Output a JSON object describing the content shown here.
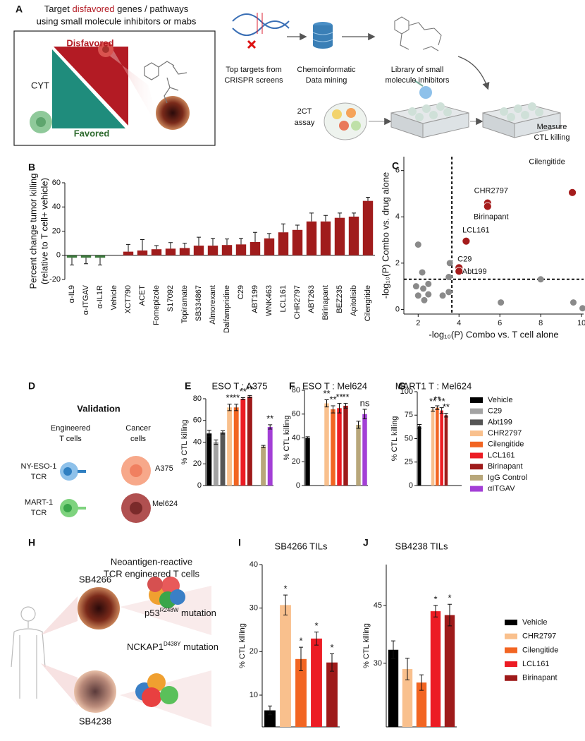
{
  "panel_a": {
    "label": "A",
    "title": [
      "Target ",
      "disfavored",
      " genes / pathways"
    ],
    "subtitle": "using small molecule inhibitors or mabs",
    "disfavored": "Disfavored",
    "cyt": "CYT",
    "favored": "Favored",
    "step1": [
      "Top targets from",
      "CRISPR screens"
    ],
    "step2": [
      "Chemoinformatic",
      "Data mining"
    ],
    "step3": [
      "Library of small",
      "molecule inhibitors"
    ],
    "assay": [
      "2CT",
      "assay"
    ],
    "readout": [
      "Measure",
      "CTL killing"
    ]
  },
  "panel_d": {
    "label": "D",
    "title": "Validation",
    "col1": [
      "Engineered",
      "T cells"
    ],
    "col2": [
      "Cancer",
      "cells"
    ],
    "row1": [
      "NY-ESO-1",
      "TCR"
    ],
    "row2": [
      "MART-1",
      "TCR"
    ],
    "cell1": "A375",
    "cell2": "Mel624"
  },
  "panel_h": {
    "label": "H",
    "title": [
      "Neoantigen-reactive",
      "TCR engineered T cells"
    ],
    "tumor1": "SB4266",
    "mutation1": [
      "p53",
      "R248W",
      " mutation"
    ],
    "mutation2": [
      "NCKAP1",
      "D438Y",
      " mutation"
    ],
    "tumor2": "SB4238"
  },
  "legend_efg": {
    "items": [
      {
        "name": "Vehicle",
        "color": "#000000"
      },
      {
        "name": "C29",
        "color": "#a3a3a3"
      },
      {
        "name": "Abt199",
        "color": "#555555"
      },
      {
        "name": "CHR2797",
        "color": "#f9c08d"
      },
      {
        "name": "Cilengitide",
        "color": "#f26522"
      },
      {
        "name": "LCL161",
        "color": "#ec1c24"
      },
      {
        "name": "Birinapant",
        "color": "#9e1a1a"
      },
      {
        "name": "IgG Control",
        "color": "#b8a77a"
      },
      {
        "name": "αITGAV",
        "color": "#a33fd6"
      }
    ]
  },
  "legend_ij": {
    "items": [
      {
        "name": "Vehicle",
        "color": "#000000"
      },
      {
        "name": "CHR2797",
        "color": "#f9c08d"
      },
      {
        "name": "Cilengitide",
        "color": "#f26522"
      },
      {
        "name": "LCL161",
        "color": "#ec1c24"
      },
      {
        "name": "Birinapant",
        "color": "#9e1a1a"
      }
    ]
  },
  "chart_data": [
    {
      "type": "bar",
      "label": "B",
      "ylabel": [
        "Percent change tumor killing",
        "(relative to T cell+ vehicle)"
      ],
      "categories": [
        "α-IL9",
        "α-ITGAV",
        "α-IL1R",
        "Vehicle",
        "XCT790",
        "ACET",
        "Fomepizole",
        "S17092",
        "Topiramate",
        "SB334867",
        "Almorexant",
        "Dalfampridine",
        "C29",
        "ABT199",
        "WNK463",
        "LCL161",
        "CHR2797",
        "ABT263",
        "Birinapant",
        "BEZ235",
        "Apitolisib",
        "Cilengitide"
      ],
      "values": [
        -2,
        -2,
        -2,
        0,
        3,
        4,
        5,
        5.5,
        6,
        8,
        8,
        8.5,
        9,
        11,
        14,
        19,
        21,
        28,
        28,
        31,
        32,
        45
      ],
      "errors": [
        6,
        5,
        6,
        0,
        6,
        9,
        3,
        5,
        4,
        7,
        6,
        5,
        5,
        8,
        4,
        7,
        4,
        7,
        5,
        4,
        3,
        3
      ],
      "colors": [
        "#3d7a3d",
        "#3d7a3d",
        "#3d7a3d",
        "#a01c1c",
        "#a01c1c",
        "#a01c1c",
        "#a01c1c",
        "#a01c1c",
        "#a01c1c",
        "#a01c1c",
        "#a01c1c",
        "#a01c1c",
        "#a01c1c",
        "#a01c1c",
        "#a01c1c",
        "#a01c1c",
        "#a01c1c",
        "#a01c1c",
        "#a01c1c",
        "#a01c1c",
        "#a01c1c",
        "#a01c1c"
      ],
      "ylim": [
        -20,
        60
      ],
      "yticks": [
        -20,
        0,
        20,
        40,
        60
      ]
    },
    {
      "type": "scatter",
      "label": "C",
      "xlabel": "-log₁₀(P) Combo vs. T cell alone",
      "ylabel": "-log₁₀(P) Combo vs. drug alone",
      "xlim": [
        1.3,
        10.1
      ],
      "ylim": [
        -0.2,
        6.6
      ],
      "xticks": [
        2,
        4,
        6,
        8,
        10
      ],
      "yticks": [
        0,
        2,
        4,
        6
      ],
      "thresholds": {
        "x": 3.65,
        "y": 1.3
      },
      "series": [
        {
          "color": "#8a8a8a",
          "x": [
            2.0,
            2.2,
            1.9,
            2.25,
            2.0,
            2.3,
            2.5,
            2.5,
            3.55,
            3.5,
            3.2,
            3.5,
            6.05,
            8.0,
            9.6,
            10.05
          ],
          "values": [
            2.8,
            1.6,
            1.0,
            0.9,
            0.6,
            0.4,
            0.65,
            1.1,
            2.0,
            1.4,
            0.6,
            0.75,
            0.3,
            1.3,
            0.3,
            0.05
          ]
        },
        {
          "color": "#a51c1c",
          "x": [
            9.55,
            5.4,
            5.4,
            4.35,
            4.0,
            4.0
          ],
          "values": [
            5.05,
            4.6,
            4.45,
            2.95,
            1.8,
            1.65
          ],
          "point_labels": [
            "Cilengitide",
            "CHR2797",
            "Birinapant",
            "LCL161",
            "C29",
            "Abt199"
          ]
        }
      ]
    },
    {
      "type": "bar",
      "label": "E",
      "title": "ESO T : A375",
      "ylabel": "% CTL killing",
      "values": [
        48,
        40,
        49,
        72,
        72,
        80,
        82,
        36,
        54
      ],
      "errors": [
        3,
        2,
        1.5,
        3,
        3,
        1,
        1,
        1,
        2
      ],
      "annotations": [
        null,
        null,
        null,
        "**",
        "**",
        "**",
        "**",
        null,
        "**"
      ],
      "ylim": [
        0,
        80
      ],
      "yticks": [
        0,
        20,
        40,
        60,
        80
      ]
    },
    {
      "type": "bar",
      "label": "F",
      "title": "ESO T : Mel624",
      "ylabel": "% CTL killing",
      "values": [
        40,
        null,
        null,
        69,
        64,
        65,
        67,
        51,
        60
      ],
      "errors": [
        1,
        null,
        null,
        3,
        3,
        4,
        2,
        3,
        4
      ],
      "annotations": [
        null,
        null,
        null,
        "**",
        "**",
        "**",
        "**",
        null,
        "ns"
      ],
      "ylim": [
        0,
        80
      ],
      "yticks": [
        0,
        20,
        40,
        60,
        80
      ]
    },
    {
      "type": "bar",
      "label": "G",
      "title": "MART1 T : Mel624",
      "ylabel": "% CTL killing",
      "values": [
        63,
        null,
        null,
        81,
        83,
        80,
        75,
        null,
        null
      ],
      "errors": [
        2,
        null,
        null,
        2,
        2,
        3,
        2,
        null,
        null
      ],
      "annotations": [
        null,
        null,
        null,
        "**",
        "**",
        "**",
        "**",
        null,
        null
      ],
      "ylim": [
        0,
        100
      ],
      "yticks": [
        0,
        25,
        50,
        75,
        100
      ]
    },
    {
      "type": "bar",
      "label": "I",
      "title": "SB4266 TILs",
      "ylabel": "% CTL killing",
      "values": [
        6.5,
        30.7,
        18.3,
        23,
        17.5
      ],
      "errors": [
        1,
        2.3,
        2.7,
        1.5,
        2
      ],
      "annotations": [
        null,
        "*",
        "*",
        "*",
        "*"
      ],
      "ylim": [
        2.7,
        40
      ],
      "yticks": [
        10,
        20,
        30,
        40
      ]
    },
    {
      "type": "bar",
      "label": "J",
      "title": "SB4238 TILs",
      "ylabel": "% CTL killing",
      "values": [
        33.5,
        28.5,
        25,
        43.5,
        42.5
      ],
      "errors": [
        2.3,
        2.8,
        2,
        1.5,
        2.8
      ],
      "annotations": [
        null,
        null,
        null,
        "*",
        "*"
      ],
      "ylim": [
        13.5,
        55.6
      ],
      "yticks": [
        30,
        45
      ]
    }
  ]
}
